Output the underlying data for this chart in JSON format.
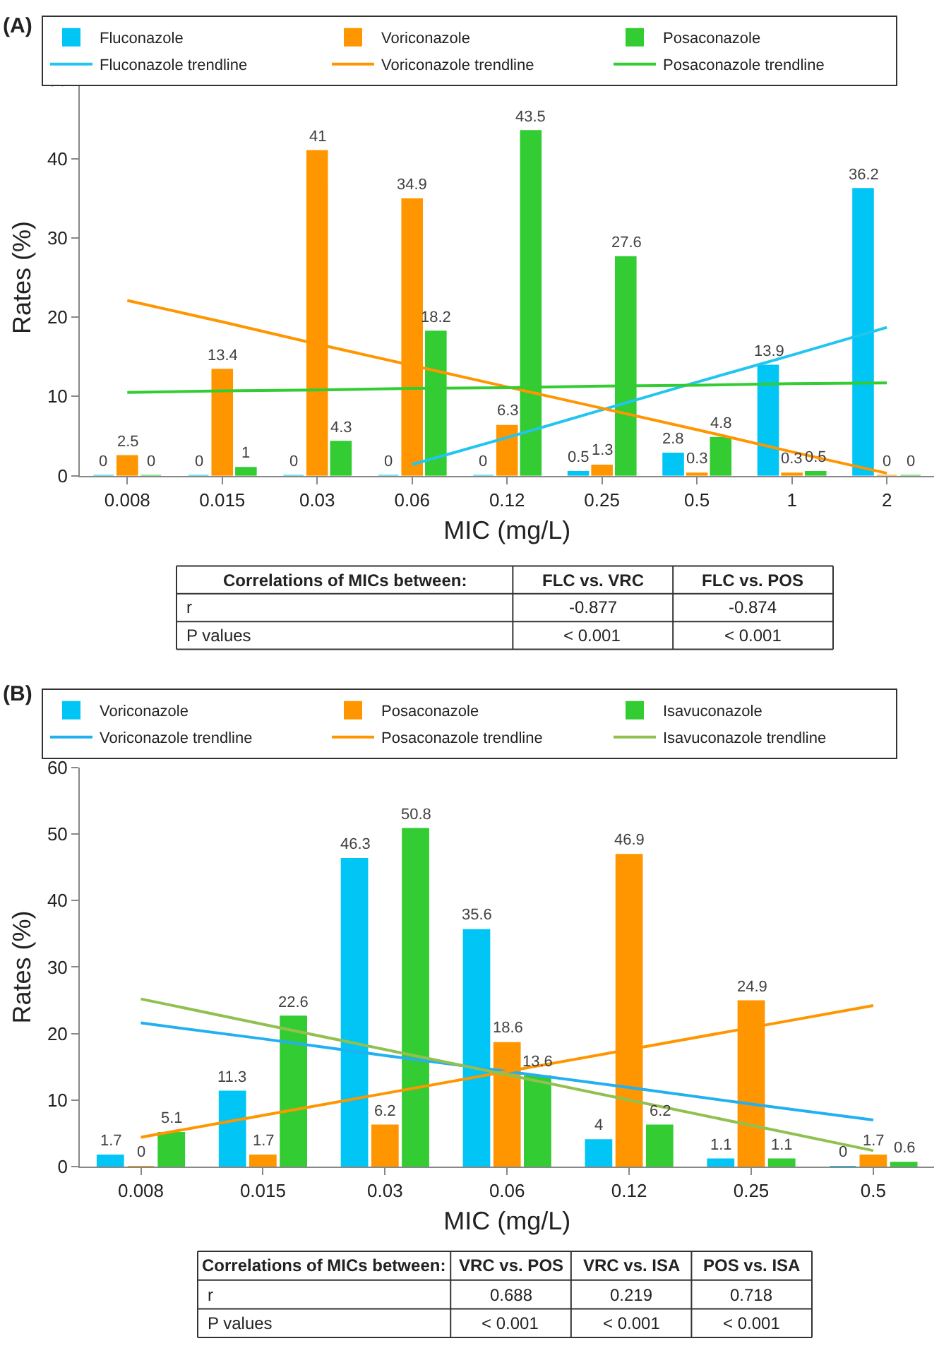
{
  "chart_data": [
    {
      "type": "bar",
      "title": "(A)",
      "xlabel": "MIC (mg/L)",
      "ylabel": "Rates (%)",
      "categories": [
        "0.008",
        "0.015",
        "0.03",
        "0.06",
        "0.12",
        "0.25",
        "0.5",
        "1",
        "2"
      ],
      "series": [
        {
          "name": "Fluconazole",
          "color": "#00c5f5",
          "values": [
            0,
            0,
            0,
            0,
            0,
            0.5,
            2.8,
            13.9,
            36.2
          ],
          "value_labels": [
            "0",
            "0",
            "0",
            "0",
            "0",
            "0.5",
            "2.8",
            "13.9",
            "36.2"
          ]
        },
        {
          "name": "Voriconazole",
          "color": "#ff9600",
          "values": [
            2.5,
            13.4,
            41,
            34.9,
            6.3,
            1.3,
            0.3,
            0.3,
            0
          ],
          "value_labels": [
            "2.5",
            "13.4",
            "41",
            "34.9",
            "6.3",
            "1.3",
            "0.3",
            "0.3",
            "0"
          ]
        },
        {
          "name": "Posaconazole",
          "color": "#33cc33",
          "values": [
            0,
            1,
            4.3,
            18.2,
            43.5,
            27.6,
            4.8,
            0.5,
            0
          ],
          "value_labels": [
            "0",
            "1",
            "4.3",
            "18.2",
            "43.5",
            "27.6",
            "4.8",
            "0.5",
            "0"
          ]
        },
        {
          "name": "Fluconazole trendline",
          "type": "line",
          "color": "#22c5f0",
          "values": [
            null,
            null,
            null,
            1.4,
            4.8,
            8.3,
            11.8,
            15.2,
            18.7
          ]
        },
        {
          "name": "Voriconazole trendline",
          "type": "line",
          "color": "#ff9600",
          "values": [
            22.1,
            19.4,
            16.6,
            13.9,
            11.2,
            8.5,
            5.8,
            3.0,
            0.3
          ]
        },
        {
          "name": "Posaconazole trendline",
          "type": "line",
          "color": "#33cc33",
          "values": [
            10.5,
            10.7,
            10.8,
            11.0,
            11.1,
            11.3,
            11.4,
            11.6,
            11.7
          ]
        }
      ],
      "ylim": [
        0,
        50
      ],
      "yticks": [
        0,
        10,
        20,
        30,
        40,
        50
      ],
      "legend": "top",
      "annotations": [
        "Correlations of MICs between:",
        "FLC vs. VRC",
        "FLC vs. POS",
        "r",
        "-0.877",
        "-0.874",
        "P values",
        "< 0.001",
        "< 0.001"
      ]
    },
    {
      "type": "bar",
      "title": "(B)",
      "xlabel": "MIC (mg/L)",
      "ylabel": "Rates (%)",
      "categories": [
        "0.008",
        "0.015",
        "0.03",
        "0.06",
        "0.12",
        "0.25",
        "0.5"
      ],
      "series": [
        {
          "name": "Voriconazole",
          "color": "#00c5f5",
          "values": [
            1.7,
            11.3,
            46.3,
            35.6,
            4,
            1.1,
            0
          ],
          "value_labels": [
            "1.7",
            "11.3",
            "46.3",
            "35.6",
            "4",
            "1.1",
            "0"
          ]
        },
        {
          "name": "Posaconazole",
          "color": "#ff9600",
          "values": [
            0,
            1.7,
            6.2,
            18.6,
            46.9,
            24.9,
            1.7
          ],
          "value_labels": [
            "0",
            "1.7",
            "6.2",
            "18.6",
            "46.9",
            "24.9",
            "1.7"
          ]
        },
        {
          "name": "Isavuconazole",
          "color": "#33cc33",
          "values": [
            5.1,
            22.6,
            50.8,
            13.6,
            6.2,
            1.1,
            0.6
          ],
          "value_labels": [
            "5.1",
            "22.6",
            "50.8",
            "13.6",
            "6.2",
            "1.1",
            "0.6"
          ]
        },
        {
          "name": "Voriconazole trendline",
          "type": "line",
          "color": "#22b0f0",
          "values": [
            21.6,
            19.2,
            16.7,
            14.3,
            11.9,
            9.4,
            7.0
          ]
        },
        {
          "name": "Posaconazole trendline",
          "type": "line",
          "color": "#ff9600",
          "values": [
            4.4,
            7.7,
            11.0,
            14.3,
            17.6,
            20.9,
            24.2
          ]
        },
        {
          "name": "Isavuconazole trendline",
          "type": "line",
          "color": "#92c050",
          "values": [
            25.2,
            21.4,
            17.6,
            13.8,
            10.0,
            6.2,
            2.4
          ]
        }
      ],
      "ylim": [
        0,
        60
      ],
      "yticks": [
        0,
        10,
        20,
        30,
        40,
        50,
        60
      ],
      "legend": "top",
      "annotations": [
        "Correlations of MICs between:",
        "VRC vs. POS",
        "VRC vs. ISA",
        "POS vs. ISA",
        "r",
        "0.688",
        "0.219",
        "0.718",
        "P values",
        "< 0.001",
        "< 0.001",
        "< 0.001"
      ]
    }
  ]
}
